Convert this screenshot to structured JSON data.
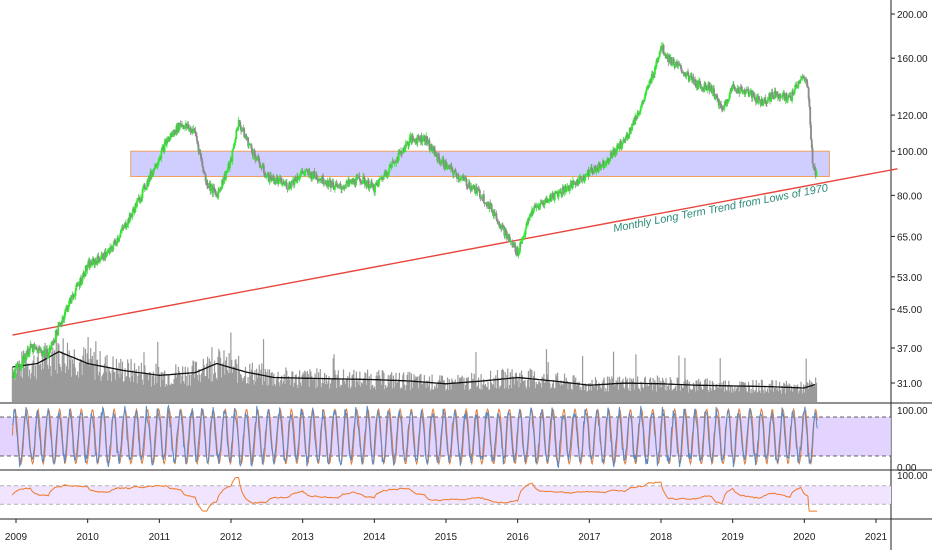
{
  "chart_data": [
    {
      "type": "line",
      "panel": "price",
      "scale": "log",
      "ylim": [
        28,
        210
      ],
      "y_ticks": [
        31,
        37,
        45,
        53,
        65,
        80,
        100,
        120,
        160,
        200
      ],
      "y_tick_labels": [
        "31.00",
        "37.00",
        "45.00",
        "53.00",
        "65.00",
        "80.00",
        "100.00",
        "120.00",
        "160.00",
        "200.00"
      ],
      "x_range": [
        2008.95,
        2021.3
      ],
      "x_ticks": [
        2009,
        2010,
        2011,
        2012,
        2013,
        2014,
        2015,
        2016,
        2017,
        2018,
        2019,
        2020,
        2021
      ],
      "x_tick_labels": [
        "2009",
        "2010",
        "2011",
        "2012",
        "2013",
        "2014",
        "2015",
        "2016",
        "2017",
        "2018",
        "2019",
        "2020",
        "2021"
      ],
      "series": [
        {
          "style": "candlestick",
          "x": [
            2008.95,
            2009.2,
            2009.45,
            2009.7,
            2010.0,
            2010.3,
            2010.6,
            2010.9,
            2011.1,
            2011.3,
            2011.5,
            2011.65,
            2011.8,
            2012.0,
            2012.1,
            2012.3,
            2012.5,
            2012.8,
            2013.0,
            2013.2,
            2013.5,
            2013.8,
            2014.0,
            2014.3,
            2014.5,
            2014.7,
            2014.9,
            2015.1,
            2015.3,
            2015.5,
            2015.7,
            2015.85,
            2016.0,
            2016.2,
            2016.5,
            2016.8,
            2017.0,
            2017.2,
            2017.5,
            2017.75,
            2017.9,
            2018.0,
            2018.1,
            2018.3,
            2018.5,
            2018.7,
            2018.85,
            2019.0,
            2019.2,
            2019.4,
            2019.6,
            2019.8,
            2019.95,
            2020.05,
            2020.12,
            2020.18
          ],
          "y": [
            32,
            37,
            36,
            45,
            56,
            60,
            72,
            90,
            105,
            115,
            110,
            86,
            80,
            95,
            116,
            100,
            88,
            84,
            90,
            88,
            83,
            87,
            83,
            96,
            106,
            107,
            96,
            90,
            85,
            80,
            72,
            65,
            60,
            74,
            80,
            85,
            90,
            94,
            106,
            128,
            150,
            170,
            160,
            150,
            140,
            138,
            123,
            138,
            135,
            128,
            134,
            130,
            145,
            140,
            92,
            88
          ]
        }
      ],
      "support_zone": {
        "from": 88,
        "to": 100
      },
      "trendline": {
        "x": [
          2008.95,
          2021.3
        ],
        "y": [
          39.5,
          91.5
        ]
      },
      "annotation": "Monthly Long Term Trend from Lows of 1970",
      "volume": {
        "x": [
          2008.95,
          2009.3,
          2009.6,
          2010.0,
          2010.5,
          2011.0,
          2011.5,
          2011.8,
          2012.2,
          2012.6,
          2013.0,
          2013.5,
          2014.0,
          2014.5,
          2015.0,
          2015.5,
          2016.0,
          2016.5,
          2017.0,
          2017.5,
          2018.0,
          2018.5,
          2019.0,
          2019.5,
          2020.0,
          2020.15
        ],
        "avg": [
          0.5,
          0.55,
          0.72,
          0.55,
          0.45,
          0.38,
          0.42,
          0.55,
          0.43,
          0.35,
          0.34,
          0.33,
          0.32,
          0.3,
          0.26,
          0.3,
          0.35,
          0.3,
          0.24,
          0.27,
          0.26,
          0.24,
          0.23,
          0.22,
          0.2,
          0.25
        ]
      }
    },
    {
      "type": "line",
      "panel": "stochastic",
      "ylim": [
        0,
        100
      ],
      "y_tick_labels": [
        "100.00",
        "0.00"
      ],
      "bands": [
        80,
        20
      ]
    },
    {
      "type": "line",
      "panel": "rsi",
      "y_tick_labels": [
        "100.00"
      ],
      "bands": [
        70,
        30
      ]
    }
  ],
  "colors": {
    "up": "#2ee82e",
    "down": "#8a8a8a",
    "zone_fill": "#c8c4ff",
    "zone_border": "#f0a060",
    "trend": "#e8453c",
    "annotation": "#2a8a78",
    "stoch_band": "#dcc8ff",
    "rsi_band": "#f0e4ff",
    "rsi_line": "#f07a2a"
  }
}
